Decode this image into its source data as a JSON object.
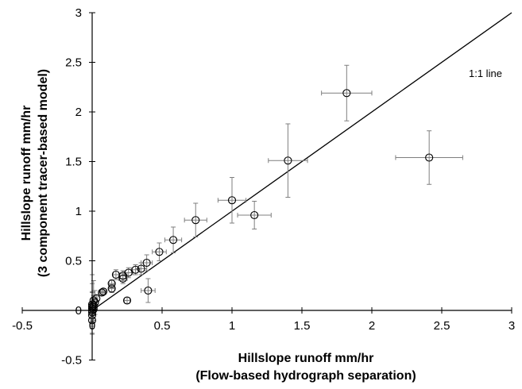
{
  "chart_data": {
    "type": "scatter",
    "xlabel_line1": "Hillslope runoff mm/hr",
    "xlabel_line2": "(Flow-based hydrograph separation)",
    "ylabel_line1": "Hillslope runoff mm/hr",
    "ylabel_line2": "(3 component tracer-based model)",
    "xlim": [
      -0.5,
      3
    ],
    "ylim": [
      -0.5,
      3
    ],
    "xticks": [
      -0.5,
      0,
      0.5,
      1,
      1.5,
      2,
      2.5,
      3
    ],
    "yticks": [
      -0.5,
      0,
      0.5,
      1,
      1.5,
      2,
      2.5,
      3
    ],
    "xtick_labels": [
      "-0.5",
      "0",
      "0.5",
      "1",
      "1.5",
      "2",
      "2.5",
      "3"
    ],
    "ytick_labels": [
      "-0.5",
      "0",
      "0.5",
      "1",
      "1.5",
      "2",
      "2.5",
      "3"
    ],
    "grid": false,
    "reference_line": {
      "label": "1:1 line",
      "from": [
        0,
        0
      ],
      "to": [
        3,
        3
      ]
    },
    "points": [
      {
        "x": 1.82,
        "y": 2.19,
        "xerr": 0.18,
        "yerr": 0.28
      },
      {
        "x": 2.41,
        "y": 1.54,
        "xerr": 0.24,
        "yerr": 0.27
      },
      {
        "x": 1.4,
        "y": 1.51,
        "xerr": 0.14,
        "yerr": 0.37
      },
      {
        "x": 1.0,
        "y": 1.11,
        "xerr": 0.1,
        "yerr": 0.23
      },
      {
        "x": 1.16,
        "y": 0.96,
        "xerr": 0.12,
        "yerr": 0.14
      },
      {
        "x": 0.74,
        "y": 0.91,
        "xerr": 0.08,
        "yerr": 0.17
      },
      {
        "x": 0.58,
        "y": 0.71,
        "xerr": 0.06,
        "yerr": 0.13
      },
      {
        "x": 0.48,
        "y": 0.59,
        "xerr": 0.05,
        "yerr": 0.09
      },
      {
        "x": 0.39,
        "y": 0.48,
        "xerr": 0.04,
        "yerr": 0.08
      },
      {
        "x": 0.35,
        "y": 0.42,
        "xerr": 0.04,
        "yerr": 0.06
      },
      {
        "x": 0.31,
        "y": 0.41,
        "xerr": 0.03,
        "yerr": 0.05
      },
      {
        "x": 0.26,
        "y": 0.38,
        "xerr": 0.03,
        "yerr": 0.05
      },
      {
        "x": 0.22,
        "y": 0.35,
        "xerr": 0.03,
        "yerr": 0.05
      },
      {
        "x": 0.22,
        "y": 0.32,
        "xerr": 0.03,
        "yerr": 0.05
      },
      {
        "x": 0.17,
        "y": 0.36,
        "xerr": 0.02,
        "yerr": 0.05
      },
      {
        "x": 0.14,
        "y": 0.27,
        "xerr": 0.02,
        "yerr": 0.04
      },
      {
        "x": 0.14,
        "y": 0.22,
        "xerr": 0.02,
        "yerr": 0.04
      },
      {
        "x": 0.08,
        "y": 0.19,
        "xerr": 0.02,
        "yerr": 0.03
      },
      {
        "x": 0.07,
        "y": 0.18,
        "xerr": 0.02,
        "yerr": 0.03
      },
      {
        "x": 0.4,
        "y": 0.2,
        "xerr": 0.05,
        "yerr": 0.12
      },
      {
        "x": 0.25,
        "y": 0.1,
        "xerr": 0.02,
        "yerr": 0.03
      },
      {
        "x": 0.03,
        "y": 0.12,
        "xerr": 0.01,
        "yerr": 0.04
      },
      {
        "x": 0.01,
        "y": 0.1,
        "xerr": 0.01,
        "yerr": 0.2
      },
      {
        "x": 0.02,
        "y": 0.08,
        "xerr": 0.01,
        "yerr": 0.12
      },
      {
        "x": 0.0,
        "y": 0.06,
        "xerr": 0.01,
        "yerr": 0.3
      },
      {
        "x": 0.01,
        "y": 0.05,
        "xerr": 0.01,
        "yerr": 0.1
      },
      {
        "x": 0.0,
        "y": 0.04,
        "xerr": 0.01,
        "yerr": 0.15
      },
      {
        "x": 0.01,
        "y": 0.03,
        "xerr": 0.01,
        "yerr": 0.08
      },
      {
        "x": 0.0,
        "y": 0.02,
        "xerr": 0.01,
        "yerr": 0.25
      },
      {
        "x": 0.01,
        "y": 0.01,
        "xerr": 0.01,
        "yerr": 0.06
      },
      {
        "x": 0.0,
        "y": 0.0,
        "xerr": 0.01,
        "yerr": 0.18
      },
      {
        "x": 0.0,
        "y": -0.02,
        "xerr": 0.01,
        "yerr": 0.1
      },
      {
        "x": 0.0,
        "y": -0.05,
        "xerr": 0.01,
        "yerr": 0.08
      },
      {
        "x": 0.0,
        "y": -0.1,
        "xerr": 0.01,
        "yerr": 0.06
      }
    ],
    "colors": {
      "axis": "#000000",
      "marker": "#000000",
      "errorbar": "#7f7f7f",
      "line": "#000000"
    }
  }
}
